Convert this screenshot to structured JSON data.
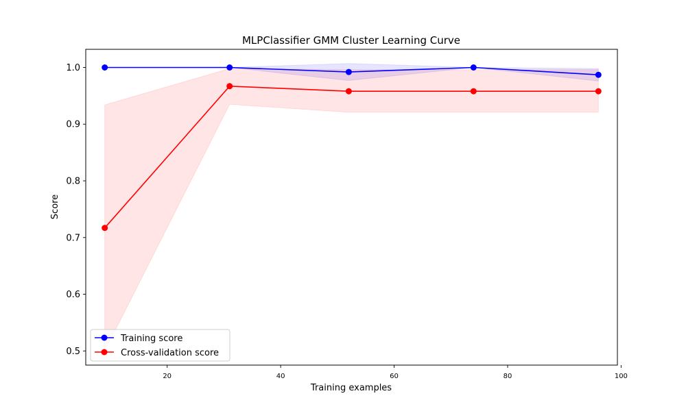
{
  "chart_data": {
    "type": "line",
    "title": "MLPClassifier GMM Cluster Learning Curve",
    "xlabel": "Training examples",
    "ylabel": "Score",
    "xlim": [
      5.65,
      99.35
    ],
    "ylim": [
      0.475,
      1.032
    ],
    "xticks": [
      20,
      40,
      60,
      80,
      100
    ],
    "yticks": [
      0.5,
      0.6,
      0.7,
      0.8,
      0.9,
      1.0
    ],
    "x": [
      9,
      31,
      52,
      74,
      96
    ],
    "series": [
      {
        "name": "Training score",
        "color": "#0000ff",
        "band_color": "#0000ff",
        "values": [
          1.0,
          1.0,
          0.992,
          1.0,
          0.987
        ],
        "lower": [
          1.0,
          1.0,
          0.977,
          1.0,
          0.976
        ],
        "upper": [
          1.0,
          1.0,
          1.007,
          1.0,
          0.998
        ]
      },
      {
        "name": "Cross-validation score",
        "color": "#ff0000",
        "band_color": "#ff0000",
        "values": [
          0.717,
          0.967,
          0.958,
          0.958,
          0.958
        ],
        "lower": [
          0.5,
          0.935,
          0.921,
          0.921,
          0.921
        ],
        "upper": [
          0.934,
          0.998,
          0.996,
          0.996,
          0.996
        ]
      }
    ],
    "legend_position": "lower-left",
    "grid": false
  }
}
